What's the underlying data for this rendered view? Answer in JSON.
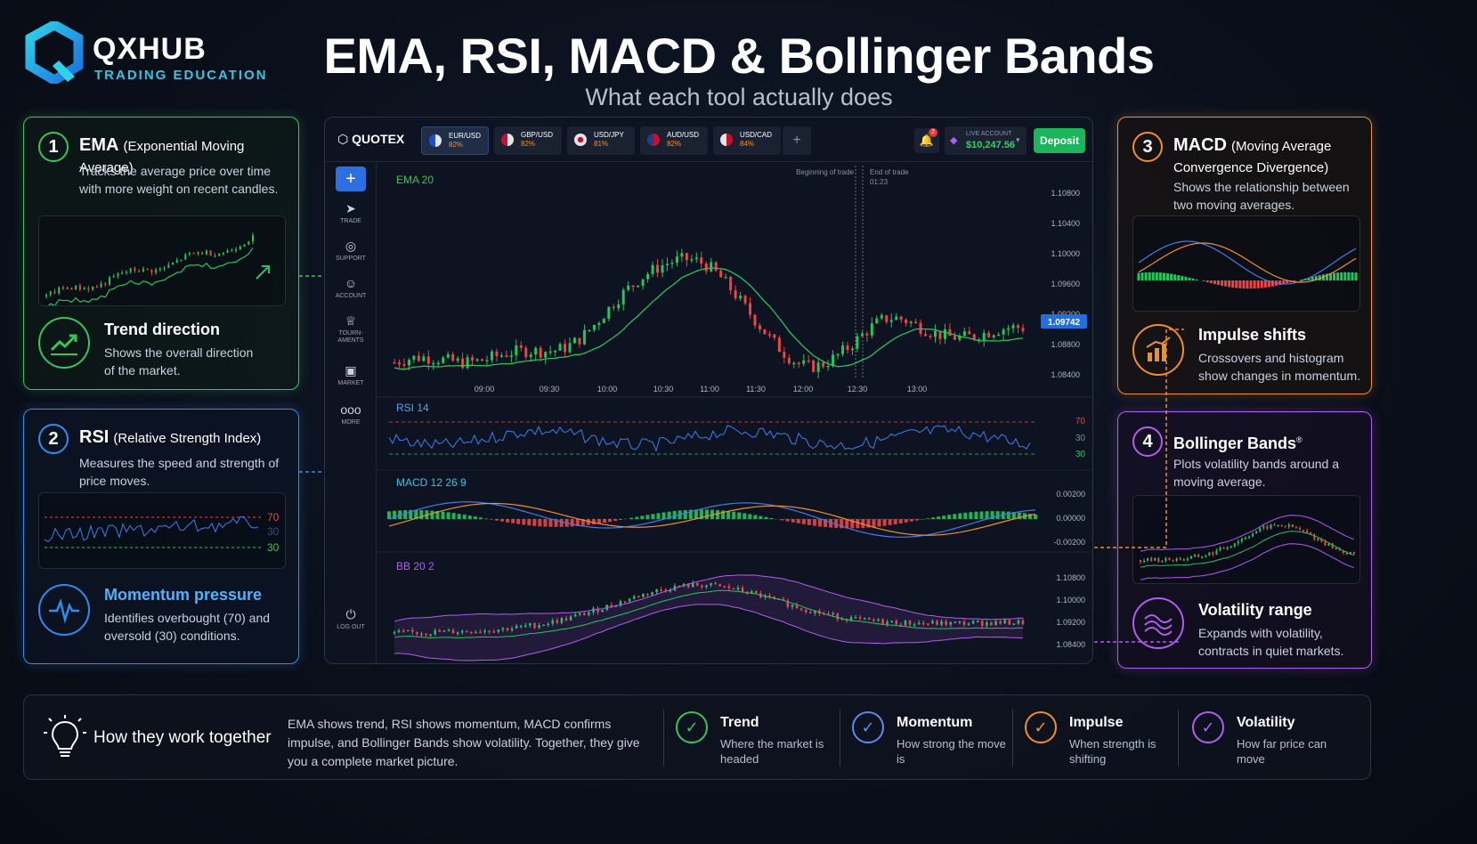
{
  "brand": {
    "name": "QXHUB",
    "tagline": "TRADING EDUCATION"
  },
  "header": {
    "title": "EMA, RSI, MACD & Bollinger Bands",
    "subtitle": "What each tool actually does"
  },
  "cards": {
    "ema": {
      "number": "1",
      "title": "EMA",
      "title_paren": "(Exponential Moving Average)",
      "desc": "Tracks the average price over time with more weight on recent candles.",
      "feature_title": "Trend direction",
      "feature_desc": "Shows the overall direction of the market."
    },
    "rsi": {
      "number": "2",
      "title": "RSI",
      "title_paren": "(Relative Strength Index)",
      "desc": "Measures the speed and strength of price moves.",
      "level_high": "70",
      "level_mid": "30",
      "level_low": "30",
      "feature_title": "Momentum pressure",
      "feature_desc": "Identifies overbought (70) and oversold (30) conditions."
    },
    "macd": {
      "number": "3",
      "title": "MACD",
      "title_paren": "(Moving Average",
      "title_line2": "Convergence Divergence)",
      "desc": "Shows the relationship between two moving averages.",
      "feature_title": "Impulse shifts",
      "feature_desc": "Crossovers and histogram show changes in momentum."
    },
    "bb": {
      "number": "4",
      "title": "Bollinger Bands",
      "title_mark": "®",
      "desc": "Plots volatility bands around a moving average.",
      "feature_title": "Volatility range",
      "feature_desc": "Expands with volatility, contracts in quiet markets."
    }
  },
  "platform": {
    "logo": "QUOTEX",
    "tabs": [
      {
        "pair": "EUR/USD",
        "payout": "82%",
        "active": true
      },
      {
        "pair": "GBP/USD",
        "payout": "82%"
      },
      {
        "pair": "USD/JPY",
        "payout": "81%"
      },
      {
        "pair": "AUD/USD",
        "payout": "82%"
      },
      {
        "pair": "USD/CAD",
        "payout": "84%"
      }
    ],
    "add_tab": "+",
    "notifications": "2",
    "account_label": "LIVE ACCOUNT",
    "balance": "$10,247.56",
    "deposit": "Deposit",
    "sidebar": {
      "plus": "+",
      "items": [
        "TRADE",
        "SUPPORT",
        "ACCOUNT",
        "TOURN-AMENTS",
        "MARKET",
        "MORE"
      ],
      "logout": "LOG OUT"
    },
    "price_panel": {
      "label": "EMA 20",
      "trade_start": "Beginning of trade",
      "trade_end": "End of trade",
      "trade_end_time": "01:23",
      "current_price": "1.09742",
      "y_ticks": [
        "1.10800",
        "1.10400",
        "1.10000",
        "1.09600",
        "1.09200",
        "1.08800",
        "1.08400"
      ],
      "x_ticks": [
        "09:00",
        "09:30",
        "10:00",
        "10:30",
        "11:00",
        "11:30",
        "12:00",
        "12:30",
        "13:00"
      ]
    },
    "rsi_panel": {
      "label": "RSI 14",
      "levels": [
        "70",
        "30",
        "30"
      ]
    },
    "macd_panel": {
      "label": "MACD 12 26 9",
      "y_ticks": [
        "0.00200",
        "0.00000",
        "-0.00200"
      ]
    },
    "bb_panel": {
      "label": "BB 20 2",
      "y_ticks": [
        "1.10800",
        "1.10000",
        "1.09200",
        "1.08400"
      ]
    }
  },
  "summary": {
    "title": "How they work together",
    "text": "EMA shows trend, RSI shows momentum, MACD confirms impulse, and Bollinger Bands show volatility. Together, they give you a complete market picture.",
    "items": [
      {
        "title": "Trend",
        "desc": "Where the market is headed",
        "color": "#34c759"
      },
      {
        "title": "Momentum",
        "desc": "How strong the move is",
        "color": "#5b8cf0"
      },
      {
        "title": "Impulse",
        "desc": "When strength is shifting",
        "color": "#f0902b"
      },
      {
        "title": "Volatility",
        "desc": "How far price can move",
        "color": "#b35cf0"
      }
    ]
  },
  "colors": {
    "green": "#34c759",
    "blue": "#2b8ef0",
    "orange": "#f0902b",
    "purple": "#b35cf0",
    "bull": "#22c55e",
    "bear": "#ef4444"
  }
}
